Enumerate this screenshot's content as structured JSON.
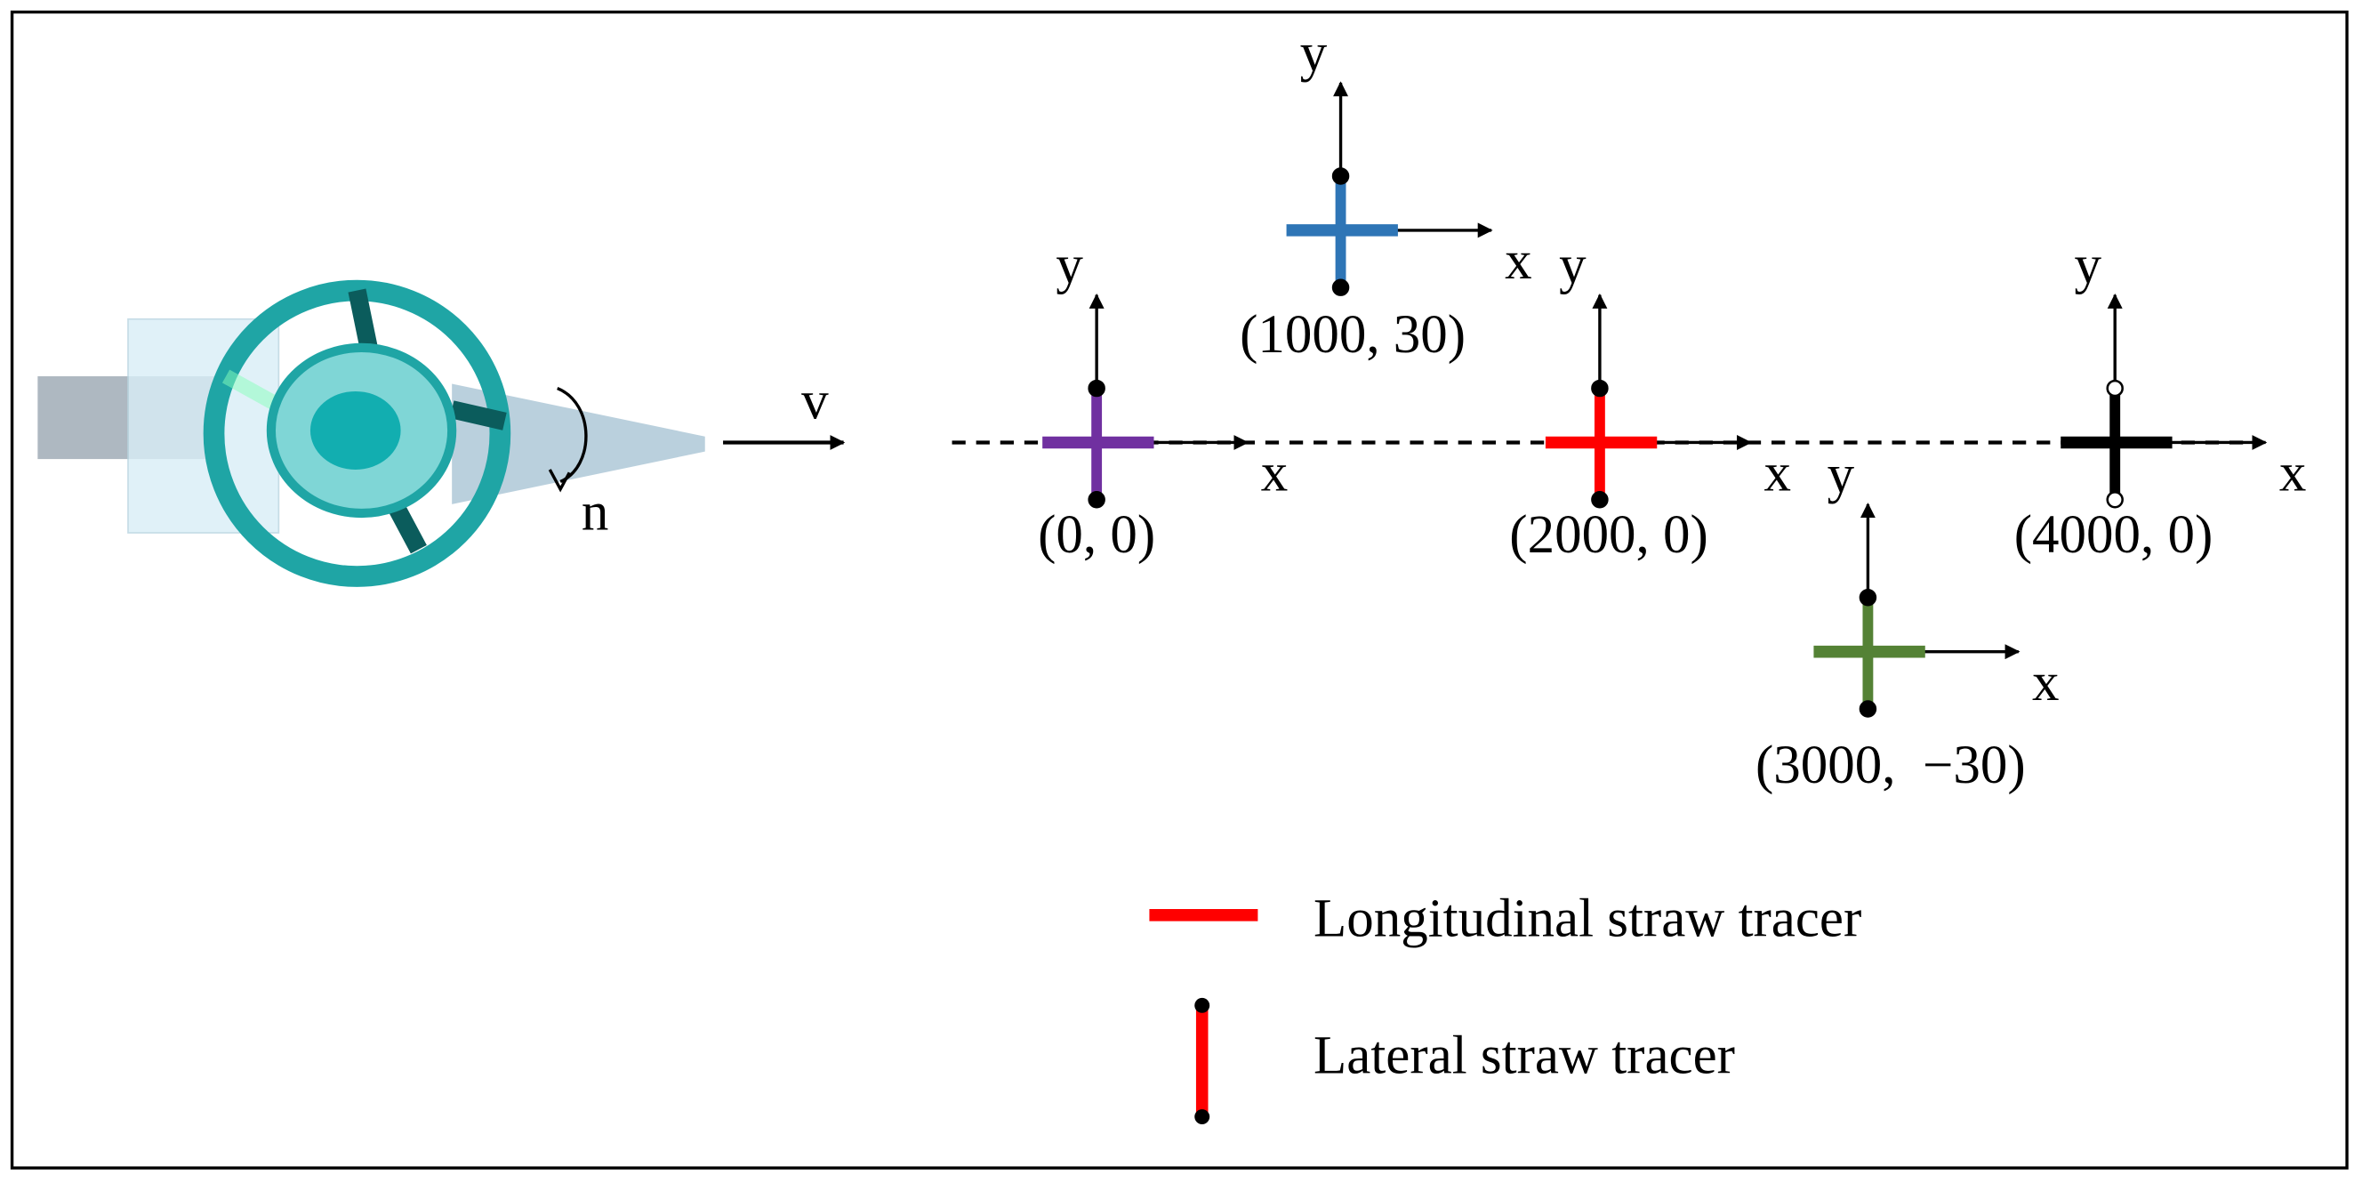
{
  "motion": {
    "velocity": "v",
    "rotation": "n"
  },
  "tracers": [
    {
      "label": "(0, 0)",
      "x_axis": "x",
      "y_axis": "y",
      "color": "#7030a0"
    },
    {
      "label": "(1000, 30)",
      "x_axis": "x",
      "y_axis": "y",
      "color": "#2e75b6"
    },
    {
      "label": "(2000, 0)",
      "x_axis": "x",
      "y_axis": "y",
      "color": "#ff0000"
    },
    {
      "label": "(3000,  −30)",
      "x_axis": "x",
      "y_axis": "y",
      "color": "#548235"
    },
    {
      "label": "(4000, 0)",
      "x_axis": "x",
      "y_axis": "y",
      "color": "#000000"
    }
  ],
  "legend": [
    {
      "label": "Longitudinal straw tracer",
      "color": "#ff0000"
    },
    {
      "label": "Lateral straw tracer",
      "color": "#ff0000"
    }
  ]
}
